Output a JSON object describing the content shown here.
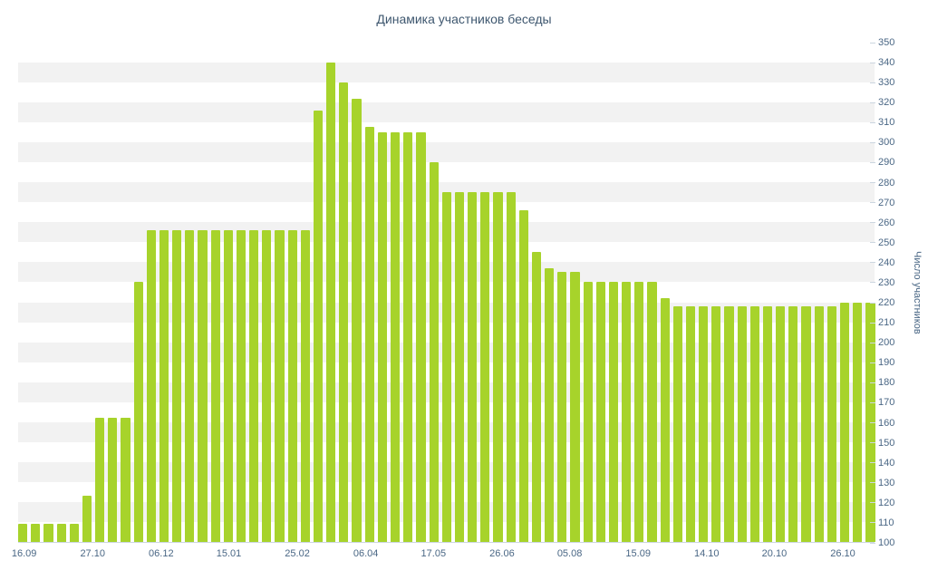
{
  "chart_data": {
    "type": "bar",
    "title": "Динамика участников беседы",
    "xlabel": "",
    "ylabel": "Число участников",
    "ylim": [
      100,
      350
    ],
    "ytick_step": 10,
    "yticks": [
      100,
      110,
      120,
      130,
      140,
      150,
      160,
      170,
      180,
      190,
      200,
      210,
      220,
      230,
      240,
      250,
      260,
      270,
      280,
      290,
      300,
      310,
      320,
      330,
      340,
      350
    ],
    "yaxis_side": "right",
    "grid": "alternating-horizontal-bands",
    "legend": "none",
    "x_tick_labels": [
      "16.09",
      "27.10",
      "06.12",
      "15.01",
      "25.02",
      "06.04",
      "17.05",
      "26.06",
      "05.08",
      "15.09",
      "14.10",
      "20.10",
      "26.10"
    ],
    "x_tick_positions": [
      0.007,
      0.087,
      0.167,
      0.246,
      0.326,
      0.406,
      0.485,
      0.565,
      0.644,
      0.724,
      0.804,
      0.883,
      0.963
    ],
    "values": [
      109,
      109,
      109,
      109,
      109,
      123,
      162,
      162,
      162,
      230,
      256,
      256,
      256,
      256,
      256,
      256,
      256,
      256,
      256,
      256,
      256,
      256,
      256,
      316,
      340,
      330,
      322,
      308,
      305,
      305,
      305,
      305,
      290,
      275,
      275,
      275,
      275,
      275,
      275,
      266,
      245,
      237,
      235,
      235,
      230,
      230,
      230,
      230,
      230,
      230,
      222,
      218,
      218,
      218,
      218,
      218,
      218,
      218,
      218,
      218,
      218,
      218,
      218,
      218,
      220,
      220,
      220
    ],
    "colors": {
      "bar": "#a7d32b",
      "band": "#f2f2f2",
      "title": "#3e576f",
      "axis_labels": "#4a6785",
      "axis_line": "#ccd6e0",
      "background": "#ffffff"
    }
  }
}
